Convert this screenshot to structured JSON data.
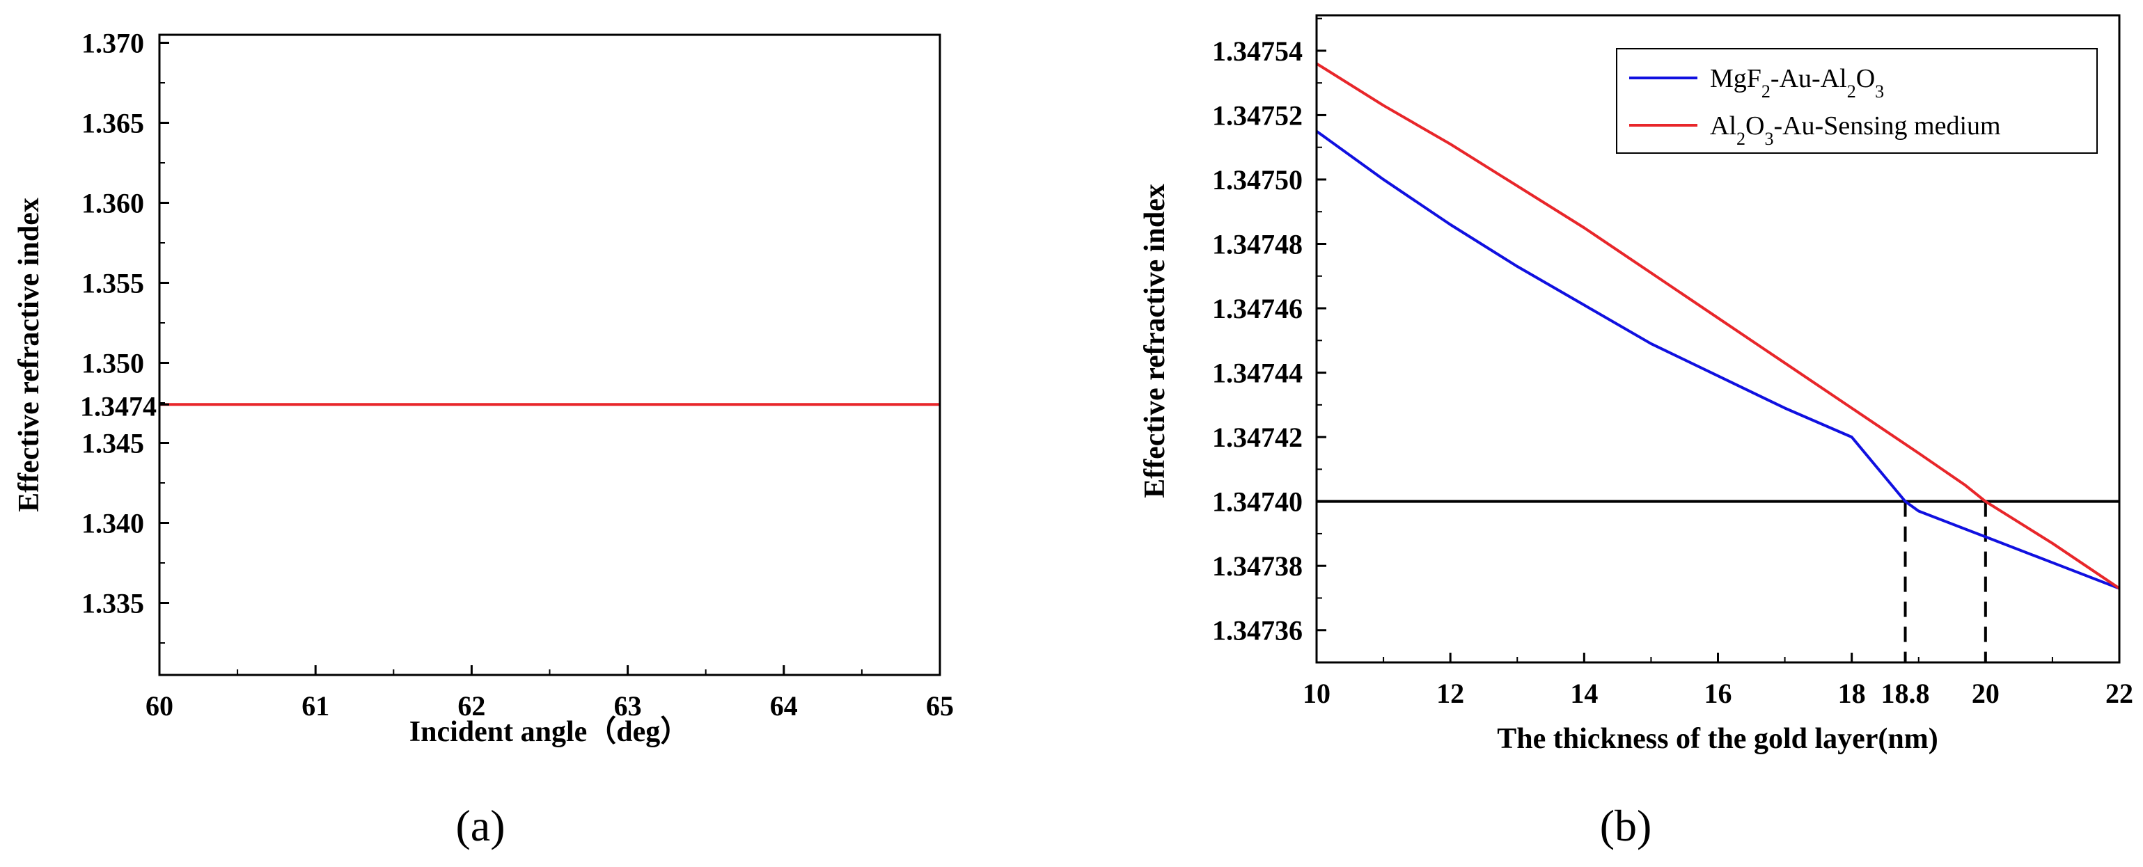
{
  "chart_data": [
    {
      "type": "line",
      "panel_label": "(a)",
      "xlabel": "Incident angle（deg）",
      "ylabel": "Effective refractive index",
      "xlim": [
        60,
        65
      ],
      "ylim": [
        1.3305,
        1.3705
      ],
      "x_ticks": [
        "60",
        "61",
        "62",
        "63",
        "64",
        "65"
      ],
      "x_tick_values": [
        60,
        61,
        62,
        63,
        64,
        65
      ],
      "y_ticks": [
        "1.335",
        "1.340",
        "1.345",
        "1.350",
        "1.355",
        "1.360",
        "1.365",
        "1.370"
      ],
      "y_tick_values": [
        1.335,
        1.34,
        1.345,
        1.35,
        1.355,
        1.36,
        1.365,
        1.37
      ],
      "annotation_y_tick": {
        "label": "1.3474",
        "value": 1.3474
      },
      "grid": false,
      "series": [
        {
          "color": "#e8262a",
          "x": [
            60,
            65
          ],
          "y": [
            1.3474,
            1.3474
          ]
        }
      ]
    },
    {
      "type": "line",
      "panel_label": "(b)",
      "xlabel": "The thickness of the gold layer(nm)",
      "ylabel": "Effective refractive index",
      "xlim": [
        10,
        22
      ],
      "ylim": [
        1.34735,
        1.347551
      ],
      "x_ticks": [
        "10",
        "12",
        "14",
        "16",
        "18",
        "18.8",
        "20",
        "22"
      ],
      "x_tick_values": [
        10,
        12,
        14,
        16,
        18,
        18.8,
        20,
        22
      ],
      "y_ticks": [
        "1.34736",
        "1.34738",
        "1.34740",
        "1.34742",
        "1.34744",
        "1.34746",
        "1.34748",
        "1.34750",
        "1.34752",
        "1.34754"
      ],
      "y_tick_values": [
        1.34736,
        1.34738,
        1.3474,
        1.34742,
        1.34744,
        1.34746,
        1.34748,
        1.3475,
        1.34752,
        1.34754
      ],
      "legend_position": "top-right",
      "grid": false,
      "reference_line": {
        "y": 1.3474,
        "color": "#000000"
      },
      "dashed_markers": [
        18.8,
        20
      ],
      "series": [
        {
          "name": "MgF2-Au-Al2O3",
          "legend_parts": [
            [
              "MgF",
              ""
            ],
            [
              "2",
              "sub"
            ],
            [
              "-Au-Al",
              ""
            ],
            [
              "2",
              "sub"
            ],
            [
              "O",
              ""
            ],
            [
              "3",
              "sub"
            ]
          ],
          "color": "#1010e0",
          "x": [
            10,
            11,
            12,
            13,
            14,
            15,
            16,
            17,
            18,
            18.8,
            19,
            20,
            21,
            22
          ],
          "y": [
            1.347515,
            1.3475,
            1.347486,
            1.347473,
            1.347461,
            1.347449,
            1.347439,
            1.347429,
            1.34742,
            1.3474,
            1.347397,
            1.347389,
            1.347381,
            1.347373
          ]
        },
        {
          "name": "Al2O3-Au-Sensing medium",
          "legend_parts": [
            [
              "Al",
              ""
            ],
            [
              "2",
              "sub"
            ],
            [
              "O",
              ""
            ],
            [
              "3",
              "sub"
            ],
            [
              "-Au-Sensing medium",
              ""
            ]
          ],
          "color": "#e8262a",
          "x": [
            10,
            11,
            12,
            13,
            14,
            15,
            16,
            17,
            18,
            19,
            19.7,
            20,
            21,
            22
          ],
          "y": [
            1.347536,
            1.347523,
            1.347511,
            1.347498,
            1.347485,
            1.347471,
            1.347457,
            1.347443,
            1.347429,
            1.347415,
            1.347405,
            1.3474,
            1.347387,
            1.347373
          ]
        }
      ]
    }
  ]
}
